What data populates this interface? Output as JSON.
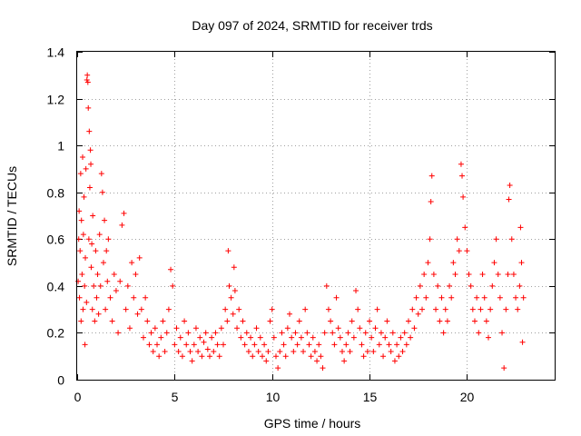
{
  "chart_data": {
    "type": "scatter",
    "title": "Day 097 of 2024, SRMTID for receiver trds",
    "xlabel": "GPS time / hours",
    "ylabel": "SRMTID / TECUs",
    "xlim": [
      0,
      24.5
    ],
    "ylim": [
      0,
      1.4
    ],
    "xticks": [
      0,
      5,
      10,
      15,
      20
    ],
    "xtick_labels": [
      "0",
      "5",
      "10",
      "15",
      "20"
    ],
    "yticks": [
      0,
      0.2,
      0.4,
      0.6,
      0.8,
      1.0,
      1.2,
      1.4
    ],
    "ytick_labels": [
      "0",
      "0.2",
      "0.4",
      "0.6",
      "0.8",
      "1",
      "1.2",
      "1.4"
    ],
    "grid": true,
    "marker": "+",
    "color": "#ff0000",
    "series": [
      {
        "name": "SRMTID",
        "points": [
          [
            0.05,
            0.42
          ],
          [
            0.08,
            0.6
          ],
          [
            0.1,
            0.72
          ],
          [
            0.12,
            0.35
          ],
          [
            0.15,
            0.55
          ],
          [
            0.18,
            0.88
          ],
          [
            0.2,
            0.25
          ],
          [
            0.22,
            0.68
          ],
          [
            0.25,
            0.45
          ],
          [
            0.28,
            0.95
          ],
          [
            0.3,
            0.3
          ],
          [
            0.32,
            0.62
          ],
          [
            0.35,
            0.78
          ],
          [
            0.38,
            0.4
          ],
          [
            0.4,
            0.15
          ],
          [
            0.42,
            0.52
          ],
          [
            0.45,
            0.9
          ],
          [
            0.48,
            0.33
          ],
          [
            0.5,
            1.28
          ],
          [
            0.52,
            1.3
          ],
          [
            0.55,
            1.27
          ],
          [
            0.57,
            1.16
          ],
          [
            0.6,
            0.6
          ],
          [
            0.62,
            1.06
          ],
          [
            0.65,
            0.82
          ],
          [
            0.68,
            0.98
          ],
          [
            0.7,
            0.92
          ],
          [
            0.72,
            0.48
          ],
          [
            0.75,
            0.58
          ],
          [
            0.78,
            0.3
          ],
          [
            0.8,
            0.7
          ],
          [
            0.85,
            0.4
          ],
          [
            0.9,
            0.25
          ],
          [
            0.95,
            0.55
          ],
          [
            1.0,
            0.35
          ],
          [
            1.05,
            0.45
          ],
          [
            1.1,
            0.28
          ],
          [
            1.15,
            0.62
          ],
          [
            1.2,
            0.4
          ],
          [
            1.25,
            0.88
          ],
          [
            1.3,
            0.8
          ],
          [
            1.35,
            0.5
          ],
          [
            1.4,
            0.68
          ],
          [
            1.45,
            0.3
          ],
          [
            1.5,
            0.55
          ],
          [
            1.55,
            0.42
          ],
          [
            1.6,
            0.6
          ],
          [
            1.7,
            0.35
          ],
          [
            1.8,
            0.25
          ],
          [
            1.9,
            0.45
          ],
          [
            2.0,
            0.38
          ],
          [
            2.1,
            0.2
          ],
          [
            2.2,
            0.42
          ],
          [
            2.3,
            0.66
          ],
          [
            2.4,
            0.71
          ],
          [
            2.5,
            0.3
          ],
          [
            2.6,
            0.4
          ],
          [
            2.7,
            0.22
          ],
          [
            2.8,
            0.5
          ],
          [
            2.9,
            0.35
          ],
          [
            3.0,
            0.45
          ],
          [
            3.1,
            0.28
          ],
          [
            3.2,
            0.52
          ],
          [
            3.3,
            0.3
          ],
          [
            3.4,
            0.18
          ],
          [
            3.5,
            0.35
          ],
          [
            3.6,
            0.25
          ],
          [
            3.7,
            0.15
          ],
          [
            3.8,
            0.2
          ],
          [
            3.9,
            0.12
          ],
          [
            4.0,
            0.22
          ],
          [
            4.1,
            0.15
          ],
          [
            4.2,
            0.1
          ],
          [
            4.3,
            0.18
          ],
          [
            4.4,
            0.25
          ],
          [
            4.5,
            0.12
          ],
          [
            4.6,
            0.2
          ],
          [
            4.7,
            0.3
          ],
          [
            4.8,
            0.47
          ],
          [
            4.9,
            0.4
          ],
          [
            5.0,
            0.15
          ],
          [
            5.1,
            0.22
          ],
          [
            5.2,
            0.12
          ],
          [
            5.3,
            0.18
          ],
          [
            5.4,
            0.1
          ],
          [
            5.5,
            0.25
          ],
          [
            5.6,
            0.15
          ],
          [
            5.7,
            0.2
          ],
          [
            5.8,
            0.12
          ],
          [
            5.9,
            0.08
          ],
          [
            6.0,
            0.15
          ],
          [
            6.1,
            0.22
          ],
          [
            6.2,
            0.12
          ],
          [
            6.3,
            0.18
          ],
          [
            6.4,
            0.1
          ],
          [
            6.5,
            0.16
          ],
          [
            6.6,
            0.2
          ],
          [
            6.7,
            0.13
          ],
          [
            6.8,
            0.1
          ],
          [
            6.9,
            0.18
          ],
          [
            7.0,
            0.12
          ],
          [
            7.1,
            0.2
          ],
          [
            7.2,
            0.15
          ],
          [
            7.3,
            0.1
          ],
          [
            7.4,
            0.22
          ],
          [
            7.5,
            0.15
          ],
          [
            7.6,
            0.3
          ],
          [
            7.7,
            0.25
          ],
          [
            7.75,
            0.55
          ],
          [
            7.8,
            0.4
          ],
          [
            7.9,
            0.35
          ],
          [
            8.0,
            0.28
          ],
          [
            8.05,
            0.48
          ],
          [
            8.1,
            0.38
          ],
          [
            8.2,
            0.22
          ],
          [
            8.3,
            0.3
          ],
          [
            8.4,
            0.18
          ],
          [
            8.5,
            0.25
          ],
          [
            8.6,
            0.15
          ],
          [
            8.7,
            0.2
          ],
          [
            8.8,
            0.12
          ],
          [
            8.9,
            0.18
          ],
          [
            9.0,
            0.1
          ],
          [
            9.1,
            0.15
          ],
          [
            9.2,
            0.22
          ],
          [
            9.3,
            0.12
          ],
          [
            9.4,
            0.18
          ],
          [
            9.5,
            0.1
          ],
          [
            9.6,
            0.15
          ],
          [
            9.7,
            0.08
          ],
          [
            9.8,
            0.12
          ],
          [
            9.9,
            0.25
          ],
          [
            10.0,
            0.3
          ],
          [
            10.1,
            0.18
          ],
          [
            10.2,
            0.1
          ],
          [
            10.3,
            0.05
          ],
          [
            10.4,
            0.12
          ],
          [
            10.5,
            0.2
          ],
          [
            10.6,
            0.15
          ],
          [
            10.7,
            0.1
          ],
          [
            10.8,
            0.22
          ],
          [
            10.9,
            0.28
          ],
          [
            11.0,
            0.18
          ],
          [
            11.1,
            0.12
          ],
          [
            11.2,
            0.2
          ],
          [
            11.3,
            0.15
          ],
          [
            11.4,
            0.25
          ],
          [
            11.5,
            0.18
          ],
          [
            11.6,
            0.12
          ],
          [
            11.7,
            0.3
          ],
          [
            11.8,
            0.2
          ],
          [
            11.9,
            0.15
          ],
          [
            12.0,
            0.1
          ],
          [
            12.1,
            0.18
          ],
          [
            12.2,
            0.12
          ],
          [
            12.3,
            0.08
          ],
          [
            12.4,
            0.15
          ],
          [
            12.5,
            0.1
          ],
          [
            12.6,
            0.05
          ],
          [
            12.7,
            0.2
          ],
          [
            12.8,
            0.4
          ],
          [
            12.9,
            0.3
          ],
          [
            13.0,
            0.25
          ],
          [
            13.1,
            0.2
          ],
          [
            13.2,
            0.15
          ],
          [
            13.3,
            0.35
          ],
          [
            13.4,
            0.22
          ],
          [
            13.5,
            0.18
          ],
          [
            13.6,
            0.12
          ],
          [
            13.7,
            0.08
          ],
          [
            13.8,
            0.15
          ],
          [
            13.9,
            0.2
          ],
          [
            14.0,
            0.12
          ],
          [
            14.1,
            0.25
          ],
          [
            14.2,
            0.18
          ],
          [
            14.3,
            0.38
          ],
          [
            14.4,
            0.3
          ],
          [
            14.5,
            0.22
          ],
          [
            14.6,
            0.15
          ],
          [
            14.7,
            0.1
          ],
          [
            14.8,
            0.2
          ],
          [
            14.9,
            0.12
          ],
          [
            15.0,
            0.25
          ],
          [
            15.1,
            0.18
          ],
          [
            15.2,
            0.12
          ],
          [
            15.3,
            0.22
          ],
          [
            15.4,
            0.3
          ],
          [
            15.5,
            0.15
          ],
          [
            15.6,
            0.2
          ],
          [
            15.7,
            0.1
          ],
          [
            15.8,
            0.18
          ],
          [
            15.9,
            0.25
          ],
          [
            16.0,
            0.15
          ],
          [
            16.1,
            0.12
          ],
          [
            16.2,
            0.2
          ],
          [
            16.3,
            0.08
          ],
          [
            16.4,
            0.15
          ],
          [
            16.5,
            0.1
          ],
          [
            16.6,
            0.18
          ],
          [
            16.7,
            0.12
          ],
          [
            16.8,
            0.2
          ],
          [
            16.9,
            0.15
          ],
          [
            17.0,
            0.25
          ],
          [
            17.1,
            0.18
          ],
          [
            17.2,
            0.3
          ],
          [
            17.3,
            0.22
          ],
          [
            17.4,
            0.35
          ],
          [
            17.5,
            0.28
          ],
          [
            17.6,
            0.4
          ],
          [
            17.7,
            0.3
          ],
          [
            17.8,
            0.45
          ],
          [
            17.9,
            0.35
          ],
          [
            18.0,
            0.5
          ],
          [
            18.1,
            0.6
          ],
          [
            18.15,
            0.76
          ],
          [
            18.2,
            0.87
          ],
          [
            18.3,
            0.45
          ],
          [
            18.4,
            0.3
          ],
          [
            18.5,
            0.4
          ],
          [
            18.6,
            0.25
          ],
          [
            18.7,
            0.35
          ],
          [
            18.8,
            0.2
          ],
          [
            18.9,
            0.3
          ],
          [
            19.0,
            0.25
          ],
          [
            19.1,
            0.4
          ],
          [
            19.2,
            0.35
          ],
          [
            19.3,
            0.5
          ],
          [
            19.4,
            0.45
          ],
          [
            19.5,
            0.6
          ],
          [
            19.6,
            0.55
          ],
          [
            19.7,
            0.92
          ],
          [
            19.75,
            0.87
          ],
          [
            19.8,
            0.78
          ],
          [
            19.9,
            0.65
          ],
          [
            20.0,
            0.55
          ],
          [
            20.1,
            0.45
          ],
          [
            20.2,
            0.4
          ],
          [
            20.3,
            0.3
          ],
          [
            20.4,
            0.25
          ],
          [
            20.5,
            0.35
          ],
          [
            20.6,
            0.2
          ],
          [
            20.7,
            0.3
          ],
          [
            20.8,
            0.45
          ],
          [
            20.9,
            0.35
          ],
          [
            21.0,
            0.25
          ],
          [
            21.1,
            0.18
          ],
          [
            21.2,
            0.3
          ],
          [
            21.3,
            0.4
          ],
          [
            21.4,
            0.5
          ],
          [
            21.5,
            0.6
          ],
          [
            21.6,
            0.45
          ],
          [
            21.7,
            0.35
          ],
          [
            21.8,
            0.2
          ],
          [
            21.9,
            0.05
          ],
          [
            22.0,
            0.3
          ],
          [
            22.1,
            0.45
          ],
          [
            22.15,
            0.77
          ],
          [
            22.2,
            0.83
          ],
          [
            22.3,
            0.6
          ],
          [
            22.4,
            0.45
          ],
          [
            22.5,
            0.35
          ],
          [
            22.6,
            0.3
          ],
          [
            22.7,
            0.4
          ],
          [
            22.75,
            0.65
          ],
          [
            22.8,
            0.5
          ],
          [
            22.85,
            0.16
          ],
          [
            22.9,
            0.35
          ]
        ]
      }
    ]
  }
}
